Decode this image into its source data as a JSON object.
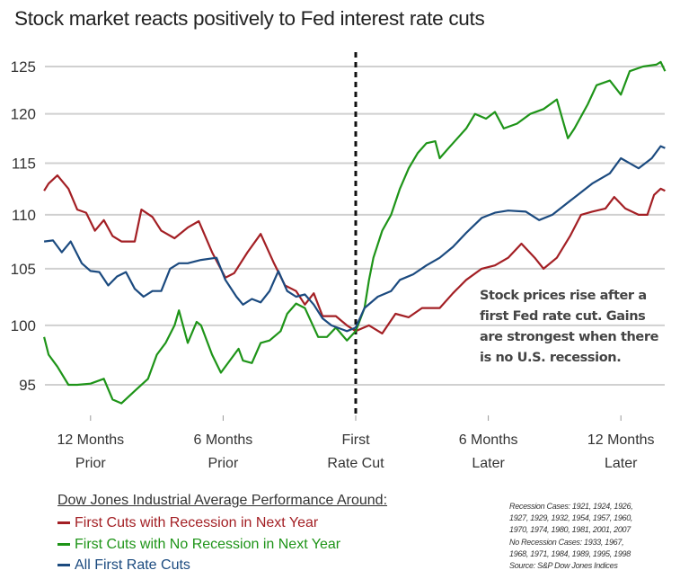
{
  "chart_data": {
    "type": "line",
    "title": "Stock market reacts positively to Fed interest rate cuts",
    "xlabel": "",
    "ylabel": "",
    "x_unit": "months relative to first rate cut",
    "xlim": [
      -14.1,
      14.0
    ],
    "ylim": [
      93,
      126.5
    ],
    "y_scale": "log",
    "grid": true,
    "yticks": [
      95,
      100,
      105,
      110,
      115,
      120,
      125
    ],
    "ytick_labels": [
      "95",
      "100",
      "105",
      "110",
      "115",
      "120",
      "125"
    ],
    "xticks": [
      -12,
      -6,
      0,
      6,
      12
    ],
    "xtick_labels": [
      [
        "12 Months",
        "Prior"
      ],
      [
        "6 Months",
        "Prior"
      ],
      [
        "First",
        "Rate Cut"
      ],
      [
        "6 Months",
        "Later"
      ],
      [
        "12 Months",
        "Later"
      ]
    ],
    "vline": {
      "x": 0,
      "style": "dashed"
    },
    "annotation": "Stock prices rise after a first Fed rate cut. Gains are strongest when there is no U.S. recession.",
    "legend_title": "Dow Jones Industrial Average Performance Around:",
    "legend_placement": "bottom-left",
    "series": [
      {
        "name": "First Cuts with Recession in Next Year",
        "color": "#a31f24",
        "x": [
          -14.1,
          -13.9,
          -13.5,
          -13.0,
          -12.6,
          -12.2,
          -11.8,
          -11.4,
          -11.0,
          -10.6,
          -10.0,
          -9.7,
          -9.2,
          -8.8,
          -8.2,
          -7.6,
          -7.1,
          -6.5,
          -5.9,
          -5.5,
          -4.9,
          -4.3,
          -3.7,
          -3.2,
          -2.7,
          -2.3,
          -1.9,
          -1.5,
          -0.9,
          -0.4,
          0,
          0.6,
          1.2,
          1.8,
          2.4,
          3.0,
          3.8,
          4.4,
          5.0,
          5.7,
          6.3,
          6.9,
          7.5,
          8.1,
          8.5,
          9.1,
          9.7,
          10.2,
          10.7,
          11.3,
          11.7,
          12.2,
          12.8,
          13.2,
          13.5,
          13.8,
          14.0
        ],
        "y": [
          112.3,
          113,
          113.8,
          112.5,
          110.5,
          110.2,
          108.5,
          109.5,
          108,
          107.5,
          107.5,
          110.5,
          109.8,
          108.5,
          107.8,
          108.8,
          109.4,
          106.5,
          104.2,
          104.6,
          106.5,
          108.2,
          105.5,
          103.5,
          103,
          101.8,
          102.8,
          100.8,
          100.8,
          100,
          99.5,
          100,
          99.3,
          101,
          100.7,
          101.5,
          101.5,
          102.8,
          104,
          105,
          105.3,
          106,
          107.3,
          106,
          105,
          106,
          108,
          110,
          110.3,
          110.6,
          111.7,
          110.6,
          110,
          110,
          111.9,
          112.5,
          112.3
        ]
      },
      {
        "name": "First Cuts with No Recession in Next Year",
        "color": "#1e9418",
        "x": [
          -14.1,
          -13.9,
          -13.5,
          -13.0,
          -12.6,
          -12.0,
          -11.4,
          -11.0,
          -10.6,
          -10.0,
          -9.4,
          -9.0,
          -8.6,
          -8.2,
          -8.0,
          -7.6,
          -7.2,
          -7.0,
          -6.5,
          -6.1,
          -5.7,
          -5.3,
          -5.1,
          -4.7,
          -4.3,
          -3.9,
          -3.4,
          -3.1,
          -2.7,
          -2.3,
          -1.7,
          -1.3,
          -0.9,
          -0.4,
          0,
          0.4,
          0.6,
          0.8,
          1.2,
          1.6,
          2.0,
          2.4,
          2.8,
          3.2,
          3.6,
          3.8,
          4.2,
          4.6,
          5.0,
          5.4,
          5.9,
          6.3,
          6.7,
          7.3,
          7.9,
          8.5,
          9.1,
          9.6,
          9.9,
          10.5,
          10.9,
          11.5,
          12.0,
          12.4,
          13.0,
          13.6,
          13.8,
          14.0
        ],
        "y": [
          99,
          97.5,
          96.5,
          95,
          95,
          95.1,
          95.5,
          93.8,
          93.5,
          94.5,
          95.5,
          97.5,
          98.5,
          100,
          101.3,
          98.5,
          100.3,
          100,
          97.5,
          96,
          97,
          98,
          97,
          96.8,
          98.5,
          98.7,
          99.5,
          101,
          101.9,
          101.5,
          99,
          99,
          99.8,
          98.7,
          99.5,
          101.5,
          104,
          106,
          108.5,
          110,
          112.5,
          114.5,
          116,
          117,
          117.2,
          115.5,
          116.5,
          117.5,
          118.5,
          120,
          119.5,
          120.2,
          118.5,
          119,
          120,
          120.5,
          121.5,
          117.5,
          118.5,
          121,
          123,
          123.5,
          122,
          124.5,
          125,
          125.2,
          125.5,
          124.5
        ]
      },
      {
        "name": "All First Rate Cuts",
        "color": "#1b4a7f",
        "x": [
          -14.1,
          -13.7,
          -13.3,
          -12.9,
          -12.4,
          -12.0,
          -11.6,
          -11.2,
          -10.8,
          -10.4,
          -10.0,
          -9.6,
          -9.2,
          -8.8,
          -8.4,
          -8.0,
          -7.6,
          -7.0,
          -6.3,
          -5.9,
          -5.4,
          -5.1,
          -4.7,
          -4.3,
          -3.9,
          -3.5,
          -3.1,
          -2.7,
          -2.3,
          -1.9,
          -1.5,
          -1.1,
          -0.4,
          0,
          0.4,
          1.0,
          1.6,
          2.0,
          2.6,
          3.2,
          3.8,
          4.4,
          5.0,
          5.7,
          6.3,
          6.9,
          7.7,
          8.3,
          8.9,
          9.5,
          10.1,
          10.7,
          11.5,
          12.0,
          12.4,
          12.8,
          13.4,
          13.8,
          14.0
        ],
        "y": [
          107.5,
          107.6,
          106.5,
          107.5,
          105.5,
          104.8,
          104.7,
          103.5,
          104.3,
          104.7,
          103.2,
          102.5,
          103,
          103,
          105,
          105.5,
          105.5,
          105.8,
          106,
          104,
          102.5,
          101.8,
          102.3,
          102,
          103,
          104.8,
          103,
          102.5,
          102.7,
          101.8,
          100.6,
          100,
          99.5,
          99.8,
          101.5,
          102.5,
          103,
          104,
          104.5,
          105.3,
          106,
          107,
          108.3,
          109.7,
          110.2,
          110.4,
          110.3,
          109.5,
          110,
          111,
          112,
          113,
          114,
          115.5,
          115,
          114.5,
          115.5,
          116.7,
          116.5
        ]
      }
    ],
    "footnote": [
      "Recession Cases: 1921, 1924, 1926,",
      "1927, 1929, 1932, 1954, 1957, 1960,",
      "1970, 1974, 1980, 1981, 2001, 2007",
      "No Recession Cases: 1933, 1967,",
      "1968, 1971, 1984, 1989, 1995, 1998",
      "Source: S&P Dow Jones Indices"
    ]
  }
}
